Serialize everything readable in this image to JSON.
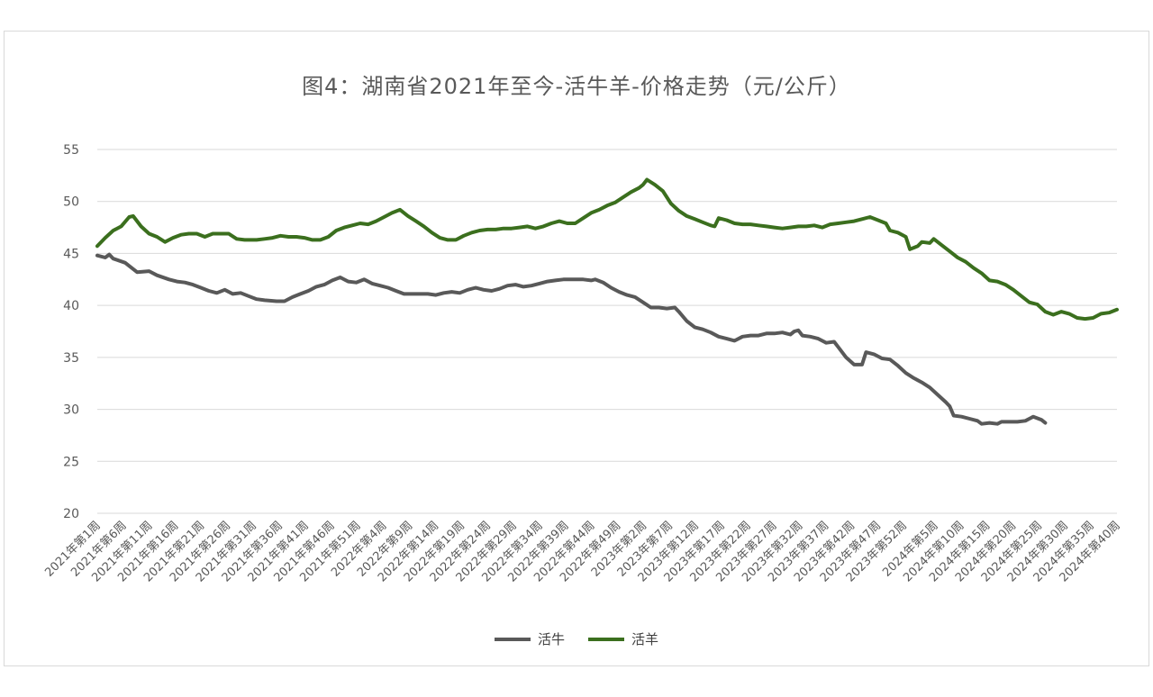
{
  "chart_data": {
    "type": "line",
    "title": "图4：湖南省2021年至今-活牛羊-价格走势（元/公斤）",
    "xlabel": "",
    "ylabel": "",
    "ylim": [
      20,
      55
    ],
    "yticks": [
      20,
      25,
      30,
      35,
      40,
      45,
      50,
      55
    ],
    "grid": true,
    "legend_position": "bottom",
    "x_tick_labels": [
      "2021年第1周",
      "2021年第6周",
      "2021年第11周",
      "2021年第16周",
      "2021年第21周",
      "2021年第26周",
      "2021年第31周",
      "2021年第36周",
      "2021年第41周",
      "2021年第46周",
      "2021年第51周",
      "2022年第4周",
      "2022年第9周",
      "2022年第14周",
      "2022年第19周",
      "2022年第24周",
      "2022年第29周",
      "2022年第34周",
      "2022年第39周",
      "2022年第44周",
      "2022年第49周",
      "2023年第2周",
      "2023年第7周",
      "2023年第12周",
      "2023年第17周",
      "2023年第22周",
      "2023年第27周",
      "2023年第32周",
      "2023年第37周",
      "2023年第42周",
      "2023年第47周",
      "2023年第52周",
      "2024年第5周",
      "2024年第10周",
      "2024年第15周",
      "2024年第20周",
      "2024年第25周",
      "2024年第30周",
      "2024年第35周",
      "2024年第40周"
    ],
    "x_tick_index": [
      0,
      5,
      10,
      15,
      20,
      25,
      30,
      35,
      40,
      45,
      50,
      55,
      60,
      65,
      70,
      75,
      80,
      85,
      90,
      95,
      100,
      105,
      110,
      115,
      120,
      125,
      130,
      135,
      140,
      145,
      150,
      155,
      161,
      166,
      171,
      176,
      181,
      186,
      191,
      196
    ],
    "x_count": 197,
    "series": [
      {
        "name": "活牛",
        "color": "#595959",
        "points": [
          [
            0,
            44.8
          ],
          [
            2,
            44.6
          ],
          [
            3,
            44.9
          ],
          [
            4,
            44.5
          ],
          [
            7,
            44.1
          ],
          [
            8,
            43.8
          ],
          [
            10,
            43.2
          ],
          [
            13,
            43.3
          ],
          [
            15,
            42.9
          ],
          [
            18,
            42.5
          ],
          [
            20,
            42.3
          ],
          [
            22,
            42.2
          ],
          [
            24,
            42.0
          ],
          [
            26,
            41.7
          ],
          [
            28,
            41.4
          ],
          [
            30,
            41.2
          ],
          [
            32,
            41.5
          ],
          [
            34,
            41.1
          ],
          [
            36,
            41.2
          ],
          [
            38,
            40.9
          ],
          [
            40,
            40.6
          ],
          [
            42,
            40.5
          ],
          [
            45,
            40.4
          ],
          [
            47,
            40.4
          ],
          [
            49,
            40.8
          ],
          [
            51,
            41.1
          ],
          [
            53,
            41.4
          ],
          [
            55,
            41.8
          ],
          [
            57,
            42.0
          ],
          [
            59,
            42.4
          ],
          [
            61,
            42.7
          ],
          [
            63,
            42.3
          ],
          [
            65,
            42.2
          ],
          [
            67,
            42.5
          ],
          [
            69,
            42.1
          ],
          [
            71,
            41.9
          ],
          [
            73,
            41.7
          ],
          [
            75,
            41.4
          ],
          [
            77,
            41.1
          ],
          [
            80,
            41.1
          ],
          [
            83,
            41.1
          ],
          [
            85,
            41.0
          ],
          [
            87,
            41.2
          ],
          [
            89,
            41.3
          ],
          [
            91,
            41.2
          ],
          [
            93,
            41.5
          ],
          [
            95,
            41.7
          ],
          [
            97,
            41.5
          ],
          [
            99,
            41.4
          ],
          [
            101,
            41.6
          ],
          [
            103,
            41.9
          ],
          [
            105,
            42.0
          ],
          [
            107,
            41.8
          ],
          [
            109,
            41.9
          ],
          [
            111,
            42.1
          ],
          [
            113,
            42.3
          ],
          [
            115,
            42.4
          ],
          [
            117,
            42.5
          ],
          [
            120,
            42.5
          ],
          [
            122,
            42.5
          ],
          [
            124,
            42.4
          ],
          [
            125,
            42.5
          ],
          [
            127,
            42.2
          ],
          [
            129,
            41.7
          ],
          [
            131,
            41.3
          ],
          [
            133,
            41.0
          ],
          [
            135,
            40.8
          ],
          [
            137,
            40.3
          ],
          [
            139,
            39.8
          ],
          [
            141,
            39.8
          ],
          [
            143,
            39.7
          ],
          [
            145,
            39.8
          ],
          [
            146,
            39.4
          ],
          [
            148,
            38.5
          ],
          [
            150,
            37.9
          ],
          [
            152,
            37.7
          ],
          [
            154,
            37.4
          ],
          [
            156,
            37.0
          ],
          [
            158,
            36.8
          ],
          [
            160,
            36.6
          ],
          [
            162,
            37.0
          ],
          [
            164,
            37.1
          ],
          [
            166,
            37.1
          ],
          [
            168,
            37.3
          ],
          [
            170,
            37.3
          ],
          [
            172,
            37.4
          ],
          [
            174,
            37.2
          ],
          [
            175,
            37.5
          ],
          [
            176,
            37.6
          ],
          [
            177,
            37.1
          ],
          [
            179,
            37.0
          ],
          [
            181,
            36.8
          ],
          [
            183,
            36.4
          ],
          [
            185,
            36.5
          ],
          [
            186,
            36.0
          ],
          [
            188,
            35.0
          ],
          [
            190,
            34.3
          ],
          [
            192,
            34.3
          ],
          [
            193,
            35.5
          ],
          [
            195,
            35.3
          ],
          [
            197,
            34.9
          ],
          [
            199,
            34.8
          ],
          [
            201,
            34.2
          ],
          [
            203,
            33.5
          ],
          [
            205,
            33.0
          ],
          [
            207,
            32.6
          ],
          [
            209,
            32.1
          ],
          [
            211,
            31.4
          ],
          [
            213,
            30.7
          ],
          [
            214,
            30.3
          ],
          [
            215,
            29.4
          ],
          [
            217,
            29.3
          ],
          [
            219,
            29.1
          ],
          [
            221,
            28.9
          ],
          [
            222,
            28.6
          ],
          [
            224,
            28.7
          ],
          [
            226,
            28.6
          ],
          [
            227,
            28.8
          ],
          [
            229,
            28.8
          ],
          [
            231,
            28.8
          ],
          [
            233,
            28.9
          ],
          [
            234,
            29.1
          ],
          [
            235,
            29.3
          ],
          [
            237,
            29.0
          ],
          [
            238,
            28.7
          ]
        ]
      },
      {
        "name": "活羊",
        "color": "#3b6f1e",
        "points": [
          [
            0,
            45.7
          ],
          [
            2,
            46.5
          ],
          [
            4,
            47.2
          ],
          [
            6,
            47.6
          ],
          [
            8,
            48.5
          ],
          [
            9,
            48.6
          ],
          [
            11,
            47.6
          ],
          [
            13,
            46.9
          ],
          [
            15,
            46.6
          ],
          [
            17,
            46.1
          ],
          [
            19,
            46.5
          ],
          [
            21,
            46.8
          ],
          [
            23,
            46.9
          ],
          [
            25,
            46.9
          ],
          [
            27,
            46.6
          ],
          [
            29,
            46.9
          ],
          [
            31,
            46.9
          ],
          [
            33,
            46.9
          ],
          [
            35,
            46.4
          ],
          [
            37,
            46.3
          ],
          [
            40,
            46.3
          ],
          [
            42,
            46.4
          ],
          [
            44,
            46.5
          ],
          [
            46,
            46.7
          ],
          [
            48,
            46.6
          ],
          [
            50,
            46.6
          ],
          [
            52,
            46.5
          ],
          [
            54,
            46.3
          ],
          [
            56,
            46.3
          ],
          [
            58,
            46.6
          ],
          [
            60,
            47.2
          ],
          [
            62,
            47.5
          ],
          [
            64,
            47.7
          ],
          [
            66,
            47.9
          ],
          [
            68,
            47.8
          ],
          [
            70,
            48.1
          ],
          [
            72,
            48.5
          ],
          [
            74,
            48.9
          ],
          [
            76,
            49.2
          ],
          [
            78,
            48.6
          ],
          [
            80,
            48.1
          ],
          [
            82,
            47.6
          ],
          [
            84,
            47.0
          ],
          [
            86,
            46.5
          ],
          [
            88,
            46.3
          ],
          [
            90,
            46.3
          ],
          [
            92,
            46.7
          ],
          [
            94,
            47.0
          ],
          [
            96,
            47.2
          ],
          [
            98,
            47.3
          ],
          [
            100,
            47.3
          ],
          [
            102,
            47.4
          ],
          [
            104,
            47.4
          ],
          [
            106,
            47.5
          ],
          [
            108,
            47.6
          ],
          [
            110,
            47.4
          ],
          [
            112,
            47.6
          ],
          [
            114,
            47.9
          ],
          [
            116,
            48.1
          ],
          [
            118,
            47.9
          ],
          [
            120,
            47.9
          ],
          [
            122,
            48.4
          ],
          [
            124,
            48.9
          ],
          [
            126,
            49.2
          ],
          [
            128,
            49.6
          ],
          [
            130,
            49.9
          ],
          [
            132,
            50.4
          ],
          [
            134,
            50.9
          ],
          [
            136,
            51.3
          ],
          [
            137,
            51.6
          ],
          [
            138,
            52.1
          ],
          [
            140,
            51.6
          ],
          [
            142,
            51.0
          ],
          [
            144,
            49.8
          ],
          [
            146,
            49.1
          ],
          [
            148,
            48.6
          ],
          [
            150,
            48.3
          ],
          [
            152,
            48.0
          ],
          [
            154,
            47.7
          ],
          [
            155,
            47.6
          ],
          [
            156,
            48.4
          ],
          [
            158,
            48.2
          ],
          [
            160,
            47.9
          ],
          [
            162,
            47.8
          ],
          [
            164,
            47.8
          ],
          [
            166,
            47.7
          ],
          [
            168,
            47.6
          ],
          [
            170,
            47.5
          ],
          [
            172,
            47.4
          ],
          [
            174,
            47.5
          ],
          [
            176,
            47.6
          ],
          [
            178,
            47.6
          ],
          [
            180,
            47.7
          ],
          [
            182,
            47.5
          ],
          [
            184,
            47.8
          ],
          [
            186,
            47.9
          ],
          [
            188,
            48.0
          ],
          [
            190,
            48.1
          ],
          [
            192,
            48.3
          ],
          [
            194,
            48.5
          ],
          [
            196,
            48.2
          ],
          [
            198,
            47.9
          ],
          [
            199,
            47.2
          ],
          [
            201,
            47.0
          ],
          [
            203,
            46.6
          ],
          [
            204,
            45.4
          ],
          [
            206,
            45.7
          ],
          [
            207,
            46.1
          ],
          [
            209,
            46.0
          ],
          [
            210,
            46.4
          ],
          [
            212,
            45.8
          ],
          [
            214,
            45.2
          ],
          [
            216,
            44.6
          ],
          [
            218,
            44.2
          ],
          [
            220,
            43.6
          ],
          [
            222,
            43.1
          ],
          [
            224,
            42.4
          ],
          [
            226,
            42.3
          ],
          [
            228,
            42.0
          ],
          [
            230,
            41.5
          ],
          [
            232,
            40.9
          ],
          [
            234,
            40.3
          ],
          [
            236,
            40.1
          ],
          [
            238,
            39.4
          ],
          [
            240,
            39.1
          ],
          [
            242,
            39.4
          ],
          [
            244,
            39.2
          ],
          [
            246,
            38.8
          ],
          [
            248,
            38.7
          ],
          [
            250,
            38.8
          ],
          [
            252,
            39.2
          ],
          [
            254,
            39.3
          ],
          [
            256,
            39.6
          ]
        ]
      }
    ]
  },
  "legend": [
    {
      "label": "活牛",
      "color": "#595959"
    },
    {
      "label": "活羊",
      "color": "#3b6f1e"
    }
  ]
}
